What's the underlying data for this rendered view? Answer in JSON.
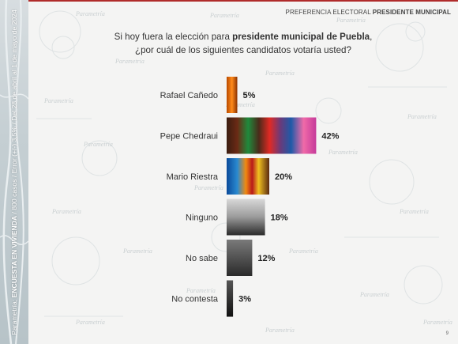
{
  "header": {
    "section": "PREFERENCIA ELECTORAL",
    "section_bold": "PRESIDENTE MUNICIPAL"
  },
  "sidebar": {
    "brand": "Parametría;",
    "survey": "ENCUESTA EN VIVIENDA",
    "details": "/ 800 casos / Error (+/-) 3.5% / Del 28 de abril al 1 de mayo de 2024"
  },
  "question": {
    "line1_start": "Si hoy fuera la elección para",
    "line1_bold": "presidente municipal de Puebla",
    "line1_end": ",",
    "line2": "¿por cuál de los siguientes candidatos votaría usted?"
  },
  "watermark": "Parametría",
  "page_number": "9",
  "chart_data": {
    "type": "bar",
    "orientation": "horizontal",
    "categories": [
      "Rafael Cañedo",
      "Pepe Chedraui",
      "Mario Riestra",
      "Ninguno",
      "No sabe",
      "No contesta"
    ],
    "values": [
      5,
      42,
      20,
      18,
      12,
      3
    ],
    "value_labels": [
      "5%",
      "42%",
      "20%",
      "18%",
      "12%",
      "3%"
    ],
    "xlim": [
      0,
      45
    ],
    "grid": false,
    "legend": "none"
  }
}
